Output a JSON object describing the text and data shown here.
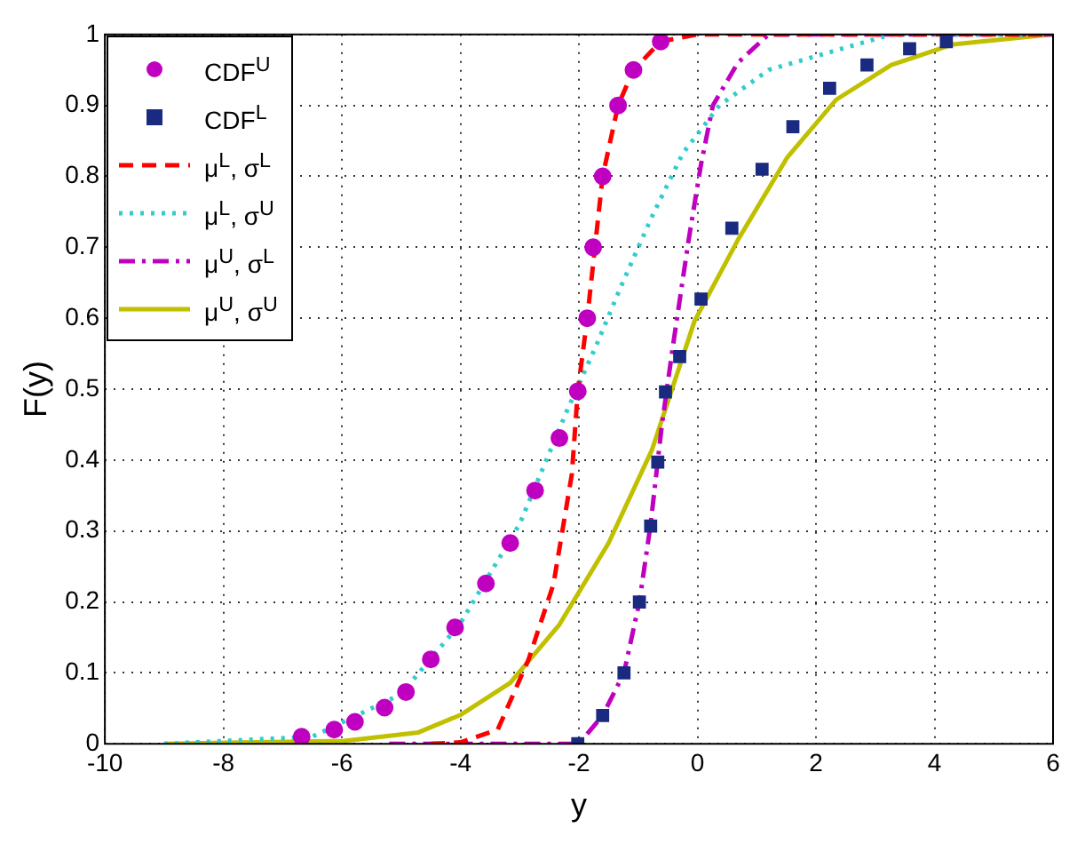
{
  "chart_data": {
    "type": "line",
    "xlabel": "y",
    "ylabel": "F(y)",
    "xlim": [
      -10,
      6
    ],
    "xticks": [
      -10,
      -8,
      -6,
      -4,
      -2,
      0,
      2,
      4,
      6
    ],
    "ylim": [
      0,
      1
    ],
    "yticks": [
      0,
      0.1,
      0.2,
      0.3,
      0.4,
      0.5,
      0.6,
      0.7,
      0.8,
      0.9,
      1
    ],
    "grid": true,
    "legend": "top left",
    "series": [
      {
        "name": "CDF$^{U}$",
        "type": "scatter",
        "marker": "circle",
        "color": "#c000c0",
        "x": [
          -6.68,
          -6.13,
          -5.78,
          -5.28,
          -4.92,
          -4.5,
          -4.09,
          -3.57,
          -3.16,
          -2.74,
          -2.33,
          -2.02,
          -1.86,
          -1.76,
          -1.6,
          -1.34,
          -1.08,
          -0.62
        ],
        "values": [
          0.01,
          0.02,
          0.031,
          0.051,
          0.073,
          0.119,
          0.164,
          0.226,
          0.283,
          0.357,
          0.431,
          0.497,
          0.6,
          0.7,
          0.8,
          0.9,
          0.95,
          0.99
        ]
      },
      {
        "name": "CDF$^{L}$",
        "type": "scatter",
        "marker": "square",
        "color": "#1a2a80",
        "x": [
          -2.02,
          -1.6,
          -1.24,
          -0.98,
          -0.79,
          -0.67,
          -0.54,
          -0.3,
          0.06,
          0.58,
          1.09,
          1.61,
          2.23,
          2.86,
          3.58,
          4.2
        ],
        "values": [
          0,
          0.04,
          0.1,
          0.2,
          0.307,
          0.397,
          0.496,
          0.546,
          0.627,
          0.727,
          0.81,
          0.87,
          0.924,
          0.957,
          0.98,
          0.99
        ]
      },
      {
        "name": "μ$^{L}$, σ$^{L}$",
        "type": "line",
        "marker": "none",
        "line_style": "dashed",
        "color": "#ff0000",
        "x": [
          -4.5,
          -4,
          -3.37,
          -2.85,
          -2.43,
          -2.12,
          -2.02,
          -1.86,
          -1.6,
          -1.34,
          -1.08,
          -0.62,
          0,
          6
        ],
        "values": [
          0,
          0.002,
          0.02,
          0.119,
          0.225,
          0.38,
          0.497,
          0.6,
          0.8,
          0.9,
          0.95,
          0.99,
          1,
          1
        ]
      },
      {
        "name": "μ$^{L}$, σ$^{U}$",
        "type": "line",
        "marker": "none",
        "line_style": "dotted",
        "color": "#33cccc",
        "x": [
          -9,
          -6.5,
          -5,
          -4,
          -3,
          -2.2,
          -1.7,
          -1.29,
          -0.77,
          -0.25,
          0.37,
          1.2,
          2.44,
          3.27,
          6
        ],
        "values": [
          0,
          0.01,
          0.07,
          0.17,
          0.31,
          0.47,
          0.563,
          0.645,
          0.743,
          0.832,
          0.9,
          0.95,
          0.98,
          1,
          1
        ]
      },
      {
        "name": "μ$^{U}$, σ$^{L}$",
        "type": "line",
        "marker": "none",
        "line_style": "dashdot",
        "color": "#bf00bf",
        "x": [
          -5.2,
          -2,
          -1.6,
          -1.24,
          -0.98,
          -0.79,
          -0.6,
          -0.41,
          -0.15,
          0.06,
          0.26,
          0.68,
          1.2,
          6
        ],
        "values": [
          0,
          0,
          0.04,
          0.1,
          0.2,
          0.31,
          0.45,
          0.563,
          0.71,
          0.817,
          0.9,
          0.96,
          1,
          1
        ]
      },
      {
        "name": "μ$^{U}$, σ$^{U}$",
        "type": "line",
        "marker": "none",
        "line_style": "solid",
        "color": "#c0c000",
        "x": [
          -9,
          -5.96,
          -4.71,
          -3.99,
          -3.16,
          -2.33,
          -1.5,
          -0.77,
          -0.05,
          0.68,
          1.51,
          2.34,
          3.27,
          4.31,
          5.97
        ],
        "values": [
          0,
          0.004,
          0.016,
          0.041,
          0.086,
          0.168,
          0.283,
          0.414,
          0.596,
          0.71,
          0.826,
          0.908,
          0.957,
          0.986,
          1
        ]
      }
    ]
  }
}
